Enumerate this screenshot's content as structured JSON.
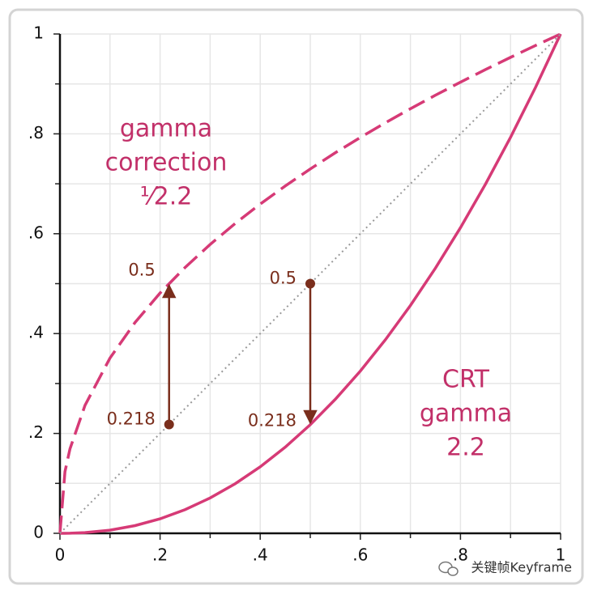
{
  "chart_data": {
    "type": "line",
    "xlim": [
      0,
      1
    ],
    "ylim": [
      0,
      1
    ],
    "xticks": [
      0,
      {
        "value": 0.2,
        "label": ".2"
      },
      {
        "value": 0.4,
        "label": ".4"
      },
      {
        "value": 0.6,
        "label": ".6"
      },
      {
        "value": 0.8,
        "label": ".8"
      },
      1
    ],
    "yticks": [
      0,
      {
        "value": 0.2,
        "label": ".2"
      },
      {
        "value": 0.4,
        "label": ".4"
      },
      {
        "value": 0.6,
        "label": ".6"
      },
      {
        "value": 0.8,
        "label": ".8"
      },
      1
    ],
    "minor_ticks": [
      0.1,
      0.3,
      0.5,
      0.7,
      0.9
    ],
    "grid": true,
    "series": [
      {
        "color": "#d63a76",
        "style": "dashed",
        "x": [
          0,
          0.01,
          0.02,
          0.05,
          0.1,
          0.15,
          0.2,
          0.25,
          0.3,
          0.35,
          0.4,
          0.45,
          0.5,
          0.55,
          0.6,
          0.65,
          0.7,
          0.75,
          0.8,
          0.85,
          0.9,
          0.95,
          1
        ],
        "values": [
          0,
          0.1233,
          0.169,
          0.2562,
          0.3511,
          0.4222,
          0.4812,
          0.5325,
          0.5785,
          0.6205,
          0.6594,
          0.6956,
          0.7297,
          0.7621,
          0.7928,
          0.8222,
          0.8503,
          0.8774,
          0.9035,
          0.9288,
          0.9532,
          0.977,
          1
        ]
      },
      {
        "color": "#d63a76",
        "style": "solid",
        "x": [
          0,
          0.01,
          0.02,
          0.05,
          0.1,
          0.15,
          0.2,
          0.25,
          0.3,
          0.35,
          0.4,
          0.45,
          0.5,
          0.55,
          0.6,
          0.65,
          0.7,
          0.75,
          0.8,
          0.85,
          0.9,
          0.95,
          1
        ],
        "values": [
          0,
          4e-05,
          0.00018,
          0.00137,
          0.0063,
          0.0154,
          0.029,
          0.0474,
          0.0708,
          0.0993,
          0.1332,
          0.1726,
          0.2176,
          0.2684,
          0.325,
          0.3876,
          0.4562,
          0.5311,
          0.6121,
          0.6994,
          0.7931,
          0.8932,
          1
        ]
      },
      {
        "color": "#999999",
        "style": "dotted",
        "x": [
          0,
          1
        ],
        "values": [
          0,
          1
        ]
      }
    ],
    "arrows": [
      {
        "x": 0.218,
        "from": 0.218,
        "to": 0.5,
        "color": "#7a2e1c"
      },
      {
        "x": 0.5,
        "from": 0.5,
        "to": 0.218,
        "color": "#7a2e1c"
      }
    ],
    "annotations": [
      {
        "lines": [
          "gamma",
          "correction",
          "¹⁄2.2"
        ],
        "color": "#c23069"
      },
      {
        "lines": [
          "CRT",
          "gamma",
          "2.2"
        ],
        "color": "#c23069"
      }
    ],
    "watermark": "关键帧Keyframe"
  }
}
